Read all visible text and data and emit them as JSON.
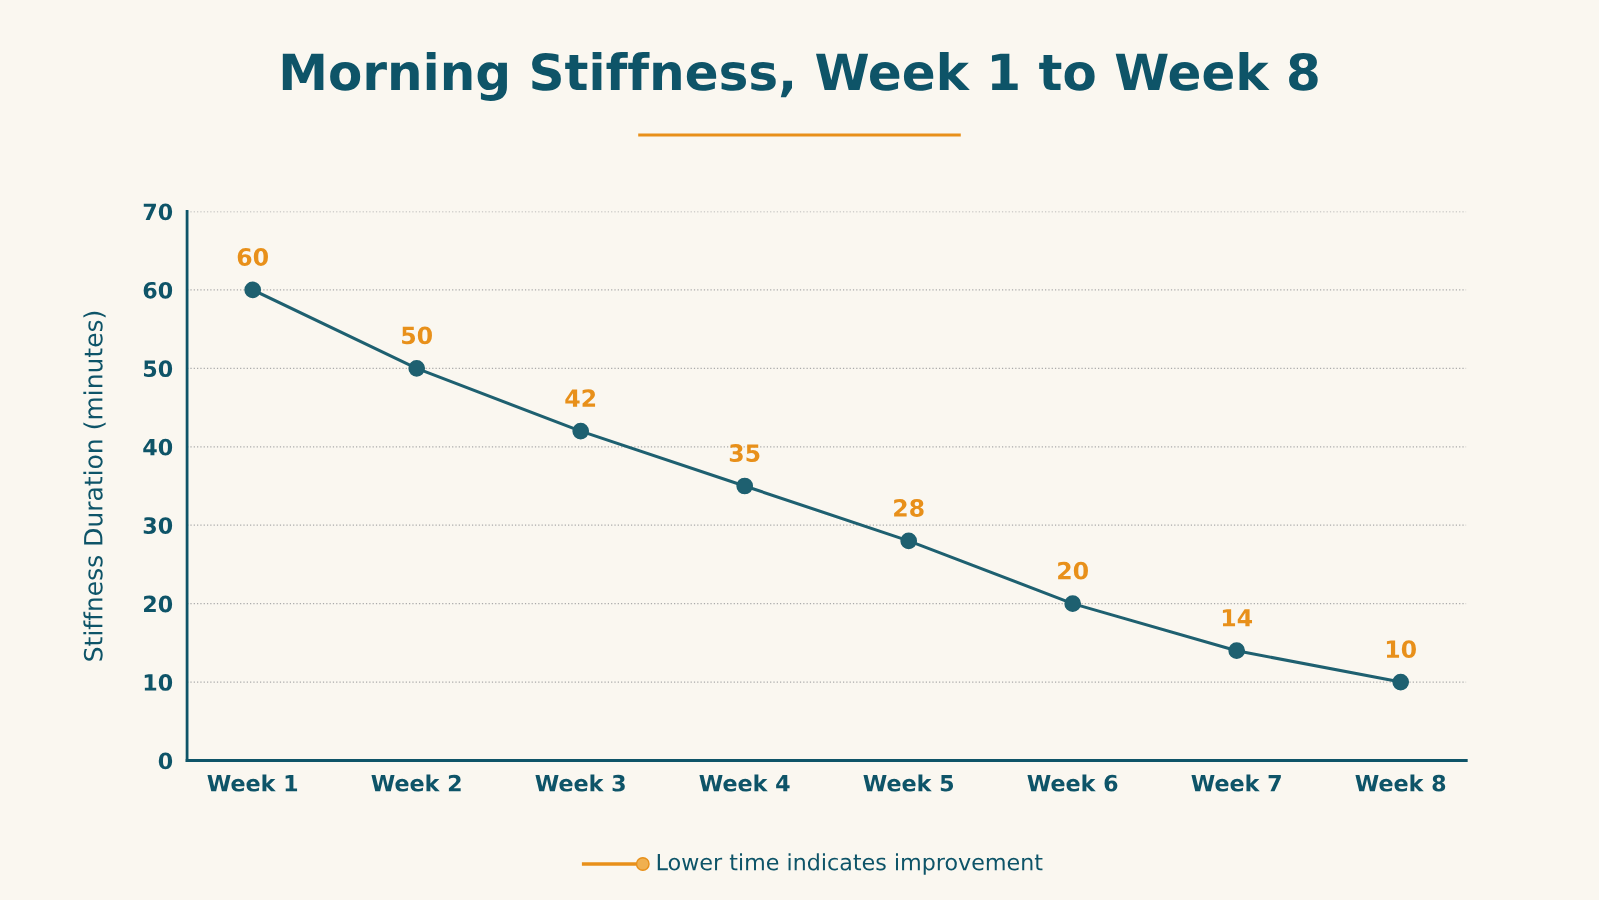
{
  "chart_data": {
    "type": "line",
    "title": "Morning Stiffness, Week 1 to Week 8",
    "ylabel": "Stiffness Duration (minutes)",
    "categories": [
      "Week 1",
      "Week 2",
      "Week 3",
      "Week 4",
      "Week 5",
      "Week 6",
      "Week 7",
      "Week 8"
    ],
    "series": [
      {
        "color": "#1e6070",
        "values": [
          60,
          50,
          42,
          35,
          28,
          20,
          14,
          10
        ]
      }
    ],
    "ylim": [
      0,
      70
    ],
    "yticks": [
      0,
      10,
      20,
      30,
      40,
      50,
      60,
      70
    ],
    "grid": "y",
    "marker": "circle",
    "line_style": "solid",
    "data_labels": true,
    "annotations": [
      "Lower time indicates improvement"
    ]
  }
}
